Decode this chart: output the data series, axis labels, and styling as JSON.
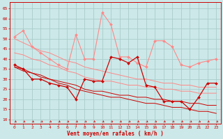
{
  "x": [
    0,
    1,
    2,
    3,
    4,
    5,
    6,
    7,
    8,
    9,
    10,
    11,
    12,
    13,
    14,
    15,
    16,
    17,
    18,
    19,
    20,
    21,
    22,
    23
  ],
  "line_light1": [
    51,
    54,
    46,
    43,
    40,
    37,
    35,
    52,
    40,
    40,
    63,
    57,
    41,
    41,
    38,
    36,
    49,
    49,
    46,
    37,
    36,
    38,
    39,
    40
  ],
  "line_dark1": [
    37,
    35,
    30,
    30,
    28,
    27,
    26,
    20,
    30,
    29,
    29,
    41,
    40,
    38,
    41,
    27,
    26,
    19,
    19,
    19,
    15,
    21,
    28,
    28
  ],
  "trend_light1": [
    50,
    48,
    46,
    44,
    43,
    41,
    39,
    38,
    36,
    35,
    34,
    33,
    32,
    31,
    30,
    30,
    29,
    28,
    28,
    27,
    27,
    26,
    26,
    26
  ],
  "trend_light2": [
    43,
    42,
    40,
    39,
    37,
    36,
    34,
    33,
    31,
    30,
    29,
    29,
    28,
    27,
    27,
    26,
    26,
    25,
    25,
    24,
    24,
    23,
    23,
    23
  ],
  "trend_dark1": [
    36,
    35,
    33,
    32,
    30,
    29,
    28,
    27,
    25,
    24,
    24,
    23,
    22,
    22,
    21,
    21,
    20,
    20,
    19,
    19,
    18,
    18,
    17,
    17
  ],
  "trend_dark2": [
    36,
    34,
    33,
    31,
    30,
    28,
    27,
    25,
    24,
    23,
    22,
    21,
    21,
    20,
    19,
    18,
    18,
    17,
    16,
    16,
    15,
    14,
    14,
    13
  ],
  "bg_color": "#cce8e8",
  "grid_color": "#aacccc",
  "line_color_dark": "#cc0000",
  "line_color_light": "#ff8888",
  "xlabel": "Vent moyen/en rafales ( km/h )",
  "yticks": [
    10,
    15,
    20,
    25,
    30,
    35,
    40,
    45,
    50,
    55,
    60,
    65
  ],
  "xlim": [
    -0.5,
    23.5
  ],
  "ylim": [
    8,
    68
  ]
}
